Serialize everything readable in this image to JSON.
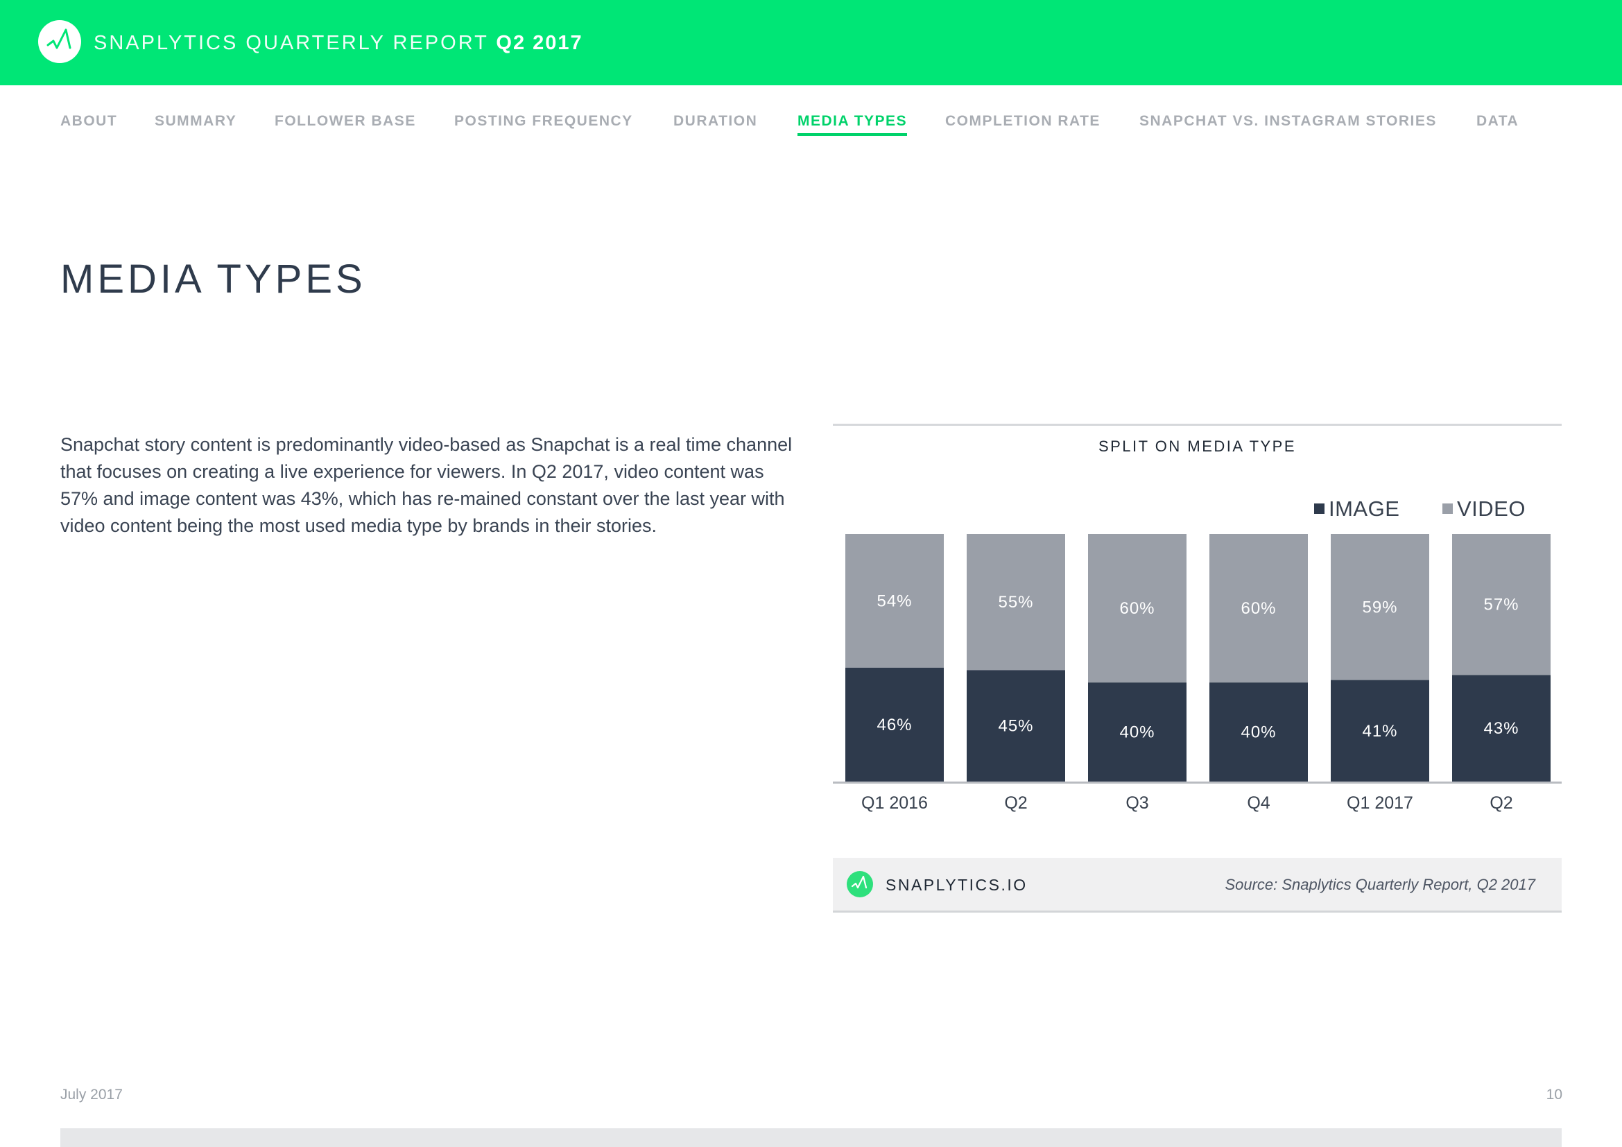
{
  "header": {
    "title_thin": "SNAPLYTICS QUARTERLY REPORT",
    "title_bold": "Q2 2017",
    "logo_icon": "snaplytics-logo-icon"
  },
  "nav": {
    "items": [
      {
        "label": "ABOUT",
        "active": false
      },
      {
        "label": "SUMMARY",
        "active": false
      },
      {
        "label": "FOLLOWER BASE",
        "active": false
      },
      {
        "label": "POSTING FREQUENCY",
        "active": false
      },
      {
        "label": "DURATION",
        "active": false
      },
      {
        "label": "MEDIA TYPES",
        "active": true
      },
      {
        "label": "COMPLETION RATE",
        "active": false
      },
      {
        "label": "SNAPCHAT VS. INSTAGRAM STORIES",
        "active": false
      },
      {
        "label": "DATA",
        "active": false
      }
    ]
  },
  "page": {
    "title": "MEDIA TYPES",
    "body": "Snapchat story content is predominantly video-based as Snapchat is a real time channel that focuses on creating a live experience for viewers. In Q2 2017, video content was 57% and image content was 43%, which has re-mained constant over the last year with video content being the most used media type by brands in their stories.",
    "date": "July 2017",
    "page_number": "10"
  },
  "chart_data": {
    "type": "bar",
    "stacked": true,
    "title": "SPLIT ON MEDIA TYPE",
    "categories": [
      "Q1 2016",
      "Q2",
      "Q3",
      "Q4",
      "Q1 2017",
      "Q2"
    ],
    "series": [
      {
        "name": "IMAGE",
        "values": [
          46,
          45,
          40,
          40,
          41,
          43
        ],
        "labels": [
          "46%",
          "45%",
          "40%",
          "40%",
          "41%",
          "43%"
        ],
        "color": "#2e3a4c"
      },
      {
        "name": "VIDEO",
        "values": [
          54,
          55,
          60,
          60,
          59,
          57
        ],
        "labels": [
          "54%",
          "55%",
          "60%",
          "60%",
          "59%",
          "57%"
        ],
        "color": "#9a9fa8"
      }
    ],
    "ylim": [
      0,
      100
    ],
    "legend": "top-right",
    "grid": false
  },
  "footer": {
    "brand": "SNAPLYTICS.IO",
    "source": "Source: Snaplytics Quarterly Report, Q2 2017",
    "logo_icon": "snaplytics-logo-icon"
  },
  "colors": {
    "accent": "#00e676",
    "nav_active": "#00d26a",
    "nav_inactive": "#a9adb3",
    "image": "#2e3a4c",
    "video": "#9a9fa8"
  }
}
